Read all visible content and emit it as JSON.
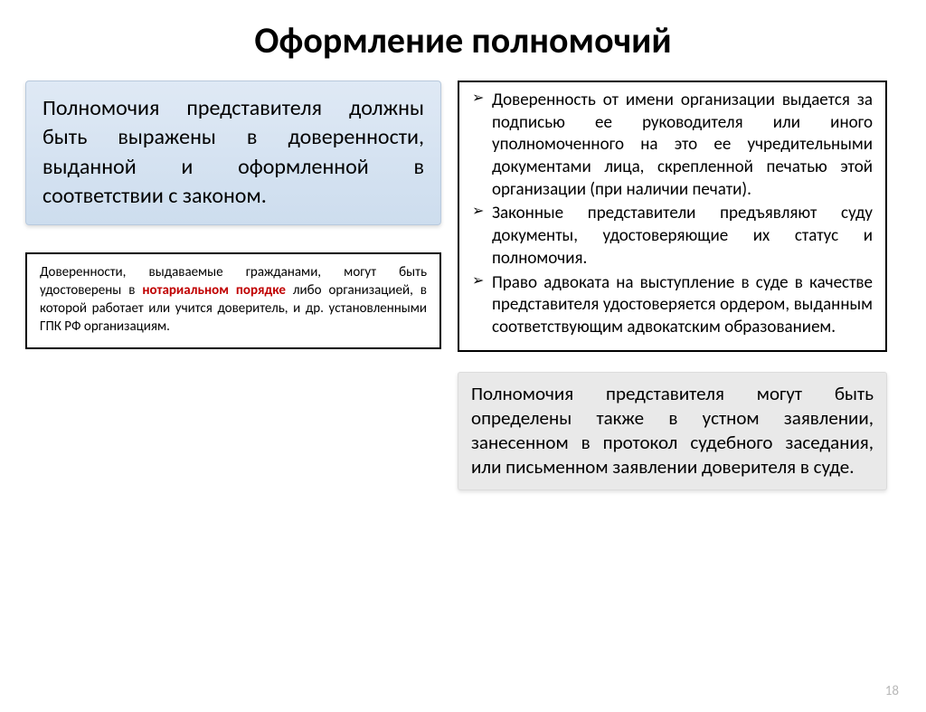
{
  "title": "Оформление полномочий",
  "left": {
    "blue_box": "Полномочия представителя должны быть выражены в доверенности, выданной и оформленной в соответствии с законом.",
    "black_box_pre": "Доверенности, выдаваемые гражданами, могут быть удостоверены в ",
    "black_box_hl": "нотариальном порядке",
    "black_box_post": " либо организацией, в которой работает или учится доверитель, и др. установленными ГПК РФ организациям."
  },
  "right": {
    "item1": "Доверенность от имени организации выдается за подписью ее руководителя или иного уполномоченного на это ее учредительными документами лица, скрепленной печатью этой организации (при наличии печати).",
    "item2": " Законные представители предъявляют суду документы, удостоверяющие их статус и полномочия.",
    "item3": "Право адвоката на выступление в суде в качестве представителя удостоверяется ордером, выданным соответствующим адвокатским образованием.",
    "gray_box": "Полномочия представителя могут быть определены также в устном заявлении, занесенном в протокол судебного заседания, или письменном заявлении доверителя в суде."
  },
  "page_num": "18",
  "colors": {
    "blue_grad_top": "#dfe9f5",
    "blue_grad_bot": "#cdddee",
    "highlight": "#c00000",
    "gray_bg": "#e9e9e9",
    "page_num": "#b8b8b8"
  }
}
